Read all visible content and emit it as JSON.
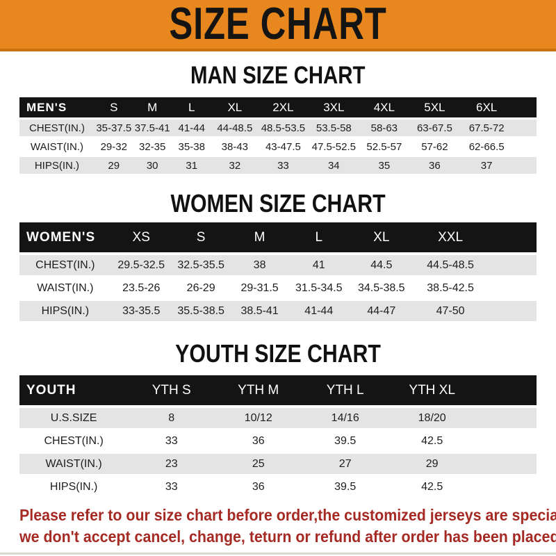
{
  "banner": {
    "title": "SIZE CHART"
  },
  "sections": [
    {
      "id": "men",
      "heading": "MAN SIZE CHART",
      "header_label": "MEN'S",
      "columns": [
        "S",
        "M",
        "L",
        "XL",
        "2XL",
        "3XL",
        "4XL",
        "5XL",
        "6XL"
      ],
      "rows": [
        {
          "label": "CHEST(IN.)",
          "values": [
            "35-37.5",
            "37.5-41",
            "41-44",
            "44-48.5",
            "48.5-53.5",
            "53.5-58",
            "58-63",
            "63-67.5",
            "67.5-72"
          ]
        },
        {
          "label": "WAIST(IN.)",
          "values": [
            "29-32",
            "32-35",
            "35-38",
            "38-43",
            "43-47.5",
            "47.5-52.5",
            "52.5-57",
            "57-62",
            "62-66.5"
          ]
        },
        {
          "label": "HIPS(IN.)",
          "values": [
            "29",
            "30",
            "31",
            "32",
            "33",
            "34",
            "35",
            "36",
            "37"
          ]
        }
      ]
    },
    {
      "id": "women",
      "heading": "WOMEN SIZE CHART",
      "header_label": "WOMEN'S",
      "columns": [
        "XS",
        "S",
        "M",
        "L",
        "XL",
        "XXL"
      ],
      "rows": [
        {
          "label": "CHEST(IN.)",
          "values": [
            "29.5-32.5",
            "32.5-35.5",
            "38",
            "41",
            "44.5",
            "44.5-48.5"
          ]
        },
        {
          "label": "WAIST(IN.)",
          "values": [
            "23.5-26",
            "26-29",
            "29-31.5",
            "31.5-34.5",
            "34.5-38.5",
            "38.5-42.5"
          ]
        },
        {
          "label": "HIPS(IN.)",
          "values": [
            "33-35.5",
            "35.5-38.5",
            "38.5-41",
            "41-44",
            "44-47",
            "47-50"
          ]
        }
      ]
    },
    {
      "id": "youth",
      "heading": "YOUTH SIZE CHART",
      "header_label": "YOUTH",
      "columns": [
        "YTH S",
        "YTH M",
        "YTH L",
        "YTH XL"
      ],
      "rows": [
        {
          "label": "U.S.SIZE",
          "values": [
            "8",
            "10/12",
            "14/16",
            "18/20"
          ]
        },
        {
          "label": "CHEST(IN.)",
          "values": [
            "33",
            "36",
            "39.5",
            "42.5"
          ]
        },
        {
          "label": "WAIST(IN.)",
          "values": [
            "23",
            "25",
            "27",
            "29"
          ]
        },
        {
          "label": "HIPS(IN.)",
          "values": [
            "33",
            "36",
            "39.5",
            "42.5"
          ]
        }
      ]
    }
  ],
  "footer": {
    "line1": "Please refer to our size chart before order,the customized jerseys are special products,",
    "line2": "we don't accept cancel, change, teturn or refund after order has been placed!"
  },
  "colors": {
    "banner_bg": "#E8871D",
    "banner_border": "#C9700F",
    "table_header_bg": "#141414",
    "row_stripe": "#E4E4E4",
    "footer_text": "#A52A24"
  }
}
